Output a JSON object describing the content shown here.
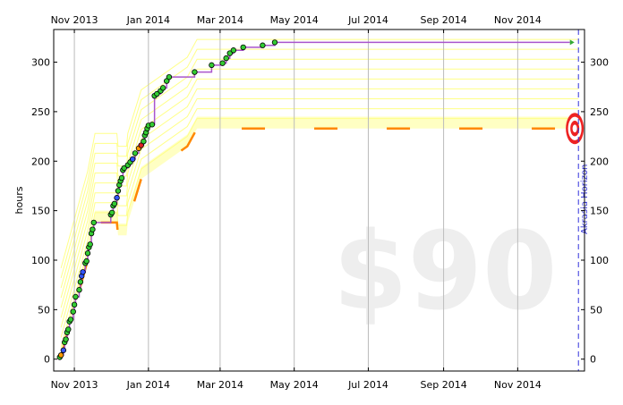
{
  "chart_data": {
    "type": "line",
    "ylabel": "hours",
    "ylim": [
      -12,
      333
    ],
    "xlim": [
      "2013-10-15",
      "2014-12-26"
    ],
    "x_ticks": [
      {
        "date": "2013-11-01",
        "label": "Nov 2013"
      },
      {
        "date": "2014-01-01",
        "label": "Jan 2014"
      },
      {
        "date": "2014-03-01",
        "label": "Mar 2014"
      },
      {
        "date": "2014-05-01",
        "label": "May 2014"
      },
      {
        "date": "2014-07-01",
        "label": "Jul 2014"
      },
      {
        "date": "2014-09-01",
        "label": "Sep 2014"
      },
      {
        "date": "2014-11-01",
        "label": "Nov 2014"
      }
    ],
    "y_ticks": [
      0,
      50,
      100,
      150,
      200,
      250,
      300
    ],
    "grid": true,
    "watermark_pledge": "$90",
    "horizon": {
      "label": "Akrasia Horizon",
      "date": "2014-12-21"
    },
    "goal": {
      "date": "2014-12-18",
      "value": 233
    },
    "bright_red_line": [
      {
        "x": "2013-10-21",
        "y": 2
      },
      {
        "x": "2013-11-03",
        "y": 60
      },
      {
        "x": "2013-11-12",
        "y": 100
      },
      {
        "x": "2013-11-18",
        "y": 138
      },
      {
        "x": "2013-12-06",
        "y": 138
      },
      {
        "x": "2013-12-07",
        "y": 125
      },
      {
        "x": "2013-12-14",
        "y": 125
      },
      {
        "x": "2013-12-15",
        "y": 138
      },
      {
        "x": "2013-12-26",
        "y": 182
      },
      {
        "x": "2014-02-02",
        "y": 215
      },
      {
        "x": "2014-02-10",
        "y": 233
      },
      {
        "x": "2014-12-21",
        "y": 233
      }
    ],
    "series": [
      {
        "points": [
          {
            "x": "2013-10-20",
            "y": 2,
            "c": "green"
          },
          {
            "x": "2013-10-21",
            "y": 4,
            "c": "orange"
          },
          {
            "x": "2013-10-23",
            "y": 9,
            "c": "blue"
          },
          {
            "x": "2013-10-24",
            "y": 17,
            "c": "green"
          },
          {
            "x": "2013-10-25",
            "y": 20,
            "c": "green"
          },
          {
            "x": "2013-10-26",
            "y": 27,
            "c": "green"
          },
          {
            "x": "2013-10-27",
            "y": 30,
            "c": "green"
          },
          {
            "x": "2013-10-28",
            "y": 38,
            "c": "green"
          },
          {
            "x": "2013-10-29",
            "y": 40,
            "c": "green"
          },
          {
            "x": "2013-10-31",
            "y": 48,
            "c": "green"
          },
          {
            "x": "2013-11-01",
            "y": 55,
            "c": "green"
          },
          {
            "x": "2013-11-02",
            "y": 63,
            "c": "green"
          },
          {
            "x": "2013-11-05",
            "y": 70,
            "c": "green"
          },
          {
            "x": "2013-11-06",
            "y": 78,
            "c": "green"
          },
          {
            "x": "2013-11-07",
            "y": 84,
            "c": "blue"
          },
          {
            "x": "2013-11-08",
            "y": 88,
            "c": "blue"
          },
          {
            "x": "2013-11-10",
            "y": 97,
            "c": "green"
          },
          {
            "x": "2013-11-11",
            "y": 99,
            "c": "green"
          },
          {
            "x": "2013-11-12",
            "y": 107,
            "c": "green"
          },
          {
            "x": "2013-11-13",
            "y": 113,
            "c": "green"
          },
          {
            "x": "2013-11-14",
            "y": 116,
            "c": "green"
          },
          {
            "x": "2013-11-15",
            "y": 127,
            "c": "green"
          },
          {
            "x": "2013-11-16",
            "y": 131,
            "c": "green"
          },
          {
            "x": "2013-11-17",
            "y": 138,
            "c": "green"
          },
          {
            "x": "2013-12-01",
            "y": 146,
            "c": "green"
          },
          {
            "x": "2013-12-02",
            "y": 148,
            "c": "green"
          },
          {
            "x": "2013-12-03",
            "y": 155,
            "c": "green"
          },
          {
            "x": "2013-12-04",
            "y": 157,
            "c": "green"
          },
          {
            "x": "2013-12-06",
            "y": 163,
            "c": "blue"
          },
          {
            "x": "2013-12-07",
            "y": 170,
            "c": "green"
          },
          {
            "x": "2013-12-08",
            "y": 176,
            "c": "green"
          },
          {
            "x": "2013-12-09",
            "y": 180,
            "c": "green"
          },
          {
            "x": "2013-12-10",
            "y": 183,
            "c": "green"
          },
          {
            "x": "2013-12-11",
            "y": 191,
            "c": "green"
          },
          {
            "x": "2013-12-12",
            "y": 193,
            "c": "green"
          },
          {
            "x": "2013-12-15",
            "y": 196,
            "c": "green"
          },
          {
            "x": "2013-12-17",
            "y": 199,
            "c": "green"
          },
          {
            "x": "2013-12-19",
            "y": 202,
            "c": "blue"
          },
          {
            "x": "2013-12-21",
            "y": 208,
            "c": "green"
          },
          {
            "x": "2013-12-24",
            "y": 213,
            "c": "orange"
          },
          {
            "x": "2013-12-26",
            "y": 216,
            "c": "red"
          },
          {
            "x": "2013-12-28",
            "y": 220,
            "c": "green"
          },
          {
            "x": "2013-12-29",
            "y": 226,
            "c": "green"
          },
          {
            "x": "2013-12-30",
            "y": 229,
            "c": "green"
          },
          {
            "x": "2013-12-31",
            "y": 233,
            "c": "green"
          },
          {
            "x": "2014-01-01",
            "y": 236,
            "c": "green"
          },
          {
            "x": "2014-01-04",
            "y": 237,
            "c": "green"
          },
          {
            "x": "2014-01-06",
            "y": 266,
            "c": "green"
          },
          {
            "x": "2014-01-08",
            "y": 268,
            "c": "green"
          },
          {
            "x": "2014-01-11",
            "y": 271,
            "c": "green"
          },
          {
            "x": "2014-01-13",
            "y": 274,
            "c": "green"
          },
          {
            "x": "2014-01-16",
            "y": 281,
            "c": "green"
          },
          {
            "x": "2014-01-18",
            "y": 285,
            "c": "green"
          },
          {
            "x": "2014-02-08",
            "y": 290,
            "c": "green"
          },
          {
            "x": "2014-02-22",
            "y": 297,
            "c": "green"
          },
          {
            "x": "2014-03-03",
            "y": 299,
            "c": "green"
          },
          {
            "x": "2014-03-06",
            "y": 304,
            "c": "green"
          },
          {
            "x": "2014-03-09",
            "y": 309,
            "c": "green"
          },
          {
            "x": "2014-03-12",
            "y": 312,
            "c": "green"
          },
          {
            "x": "2014-03-20",
            "y": 315,
            "c": "green"
          },
          {
            "x": "2014-04-05",
            "y": 317,
            "c": "green"
          },
          {
            "x": "2014-04-15",
            "y": 320,
            "c": "green"
          }
        ],
        "line_end": {
          "x": "2014-12-14",
          "y": 320
        }
      }
    ],
    "colors": {
      "datapoint_green": "#33cc33",
      "datapoint_blue": "#3355ff",
      "datapoint_orange": "#ff9900",
      "datapoint_red": "#dd2222",
      "stair_line": "#aa55cc",
      "road_line": "#ff8800",
      "yellow_band": "#ffff88",
      "horizon_line": "#3333dd",
      "target_red": "#ee2222"
    }
  }
}
